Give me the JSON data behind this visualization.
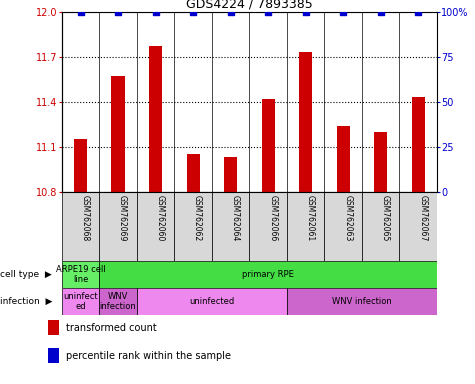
{
  "title": "GDS4224 / 7893385",
  "samples": [
    "GSM762068",
    "GSM762069",
    "GSM762060",
    "GSM762062",
    "GSM762064",
    "GSM762066",
    "GSM762061",
    "GSM762063",
    "GSM762065",
    "GSM762067"
  ],
  "transformed_counts": [
    11.15,
    11.57,
    11.77,
    11.05,
    11.03,
    11.42,
    11.73,
    11.24,
    11.2,
    11.43
  ],
  "percentile_ranks": [
    100,
    100,
    100,
    100,
    100,
    100,
    100,
    100,
    100,
    100
  ],
  "ylim_left": [
    10.8,
    12.0
  ],
  "ylim_right": [
    0,
    100
  ],
  "yticks_left": [
    10.8,
    11.1,
    11.4,
    11.7,
    12.0
  ],
  "yticks_right": [
    0,
    25,
    50,
    75,
    100
  ],
  "bar_color": "#cc0000",
  "dot_color": "#0000cc",
  "cell_type_row": [
    {
      "label": "ARPE19 cell\nline",
      "start": 0,
      "end": 1,
      "color": "#66ee66"
    },
    {
      "label": "primary RPE",
      "start": 1,
      "end": 10,
      "color": "#44dd44"
    }
  ],
  "infection_row": [
    {
      "label": "uninfect\ned",
      "start": 0,
      "end": 1,
      "color": "#ee88ee"
    },
    {
      "label": "WNV\ninfection",
      "start": 1,
      "end": 2,
      "color": "#cc66cc"
    },
    {
      "label": "uninfected",
      "start": 2,
      "end": 6,
      "color": "#ee88ee"
    },
    {
      "label": "WNV infection",
      "start": 6,
      "end": 10,
      "color": "#cc66cc"
    }
  ],
  "axis_label_color_left": "#cc0000",
  "axis_label_color_right": "#0000cc"
}
